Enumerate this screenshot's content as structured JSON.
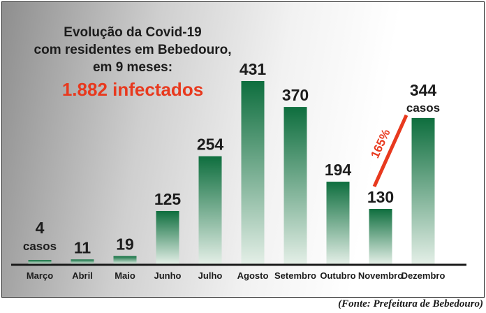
{
  "headline": {
    "lines": [
      "Evolução da Covid-19",
      "com residentes em Bebedouro,",
      "em 9 meses:"
    ],
    "total": "1.882 infectados"
  },
  "source": "(Fonte: Prefeitura de Bebedouro)",
  "colors": {
    "bar_top": "#0e6e3e",
    "bar_bottom": "#e4efe7",
    "accent": "#e8391e",
    "text": "#1c1c1c"
  },
  "chart_data": {
    "type": "bar",
    "categories": [
      "Março",
      "Abril",
      "Maio",
      "Junho",
      "Julho",
      "Agosto",
      "Setembro",
      "Outubro",
      "Novembro",
      "Dezembro"
    ],
    "values": [
      4,
      11,
      19,
      125,
      254,
      431,
      370,
      194,
      130,
      344
    ],
    "value_labels": [
      "4",
      "11",
      "19",
      "125",
      "254",
      "431",
      "370",
      "194",
      "130",
      "344"
    ],
    "unit_labels": {
      "first": "casos",
      "last": "casos"
    },
    "annotation": {
      "text": "165%",
      "from": "Novembro",
      "to": "Dezembro"
    },
    "ylim": [
      0,
      431
    ],
    "grid": false,
    "legend": "none"
  }
}
